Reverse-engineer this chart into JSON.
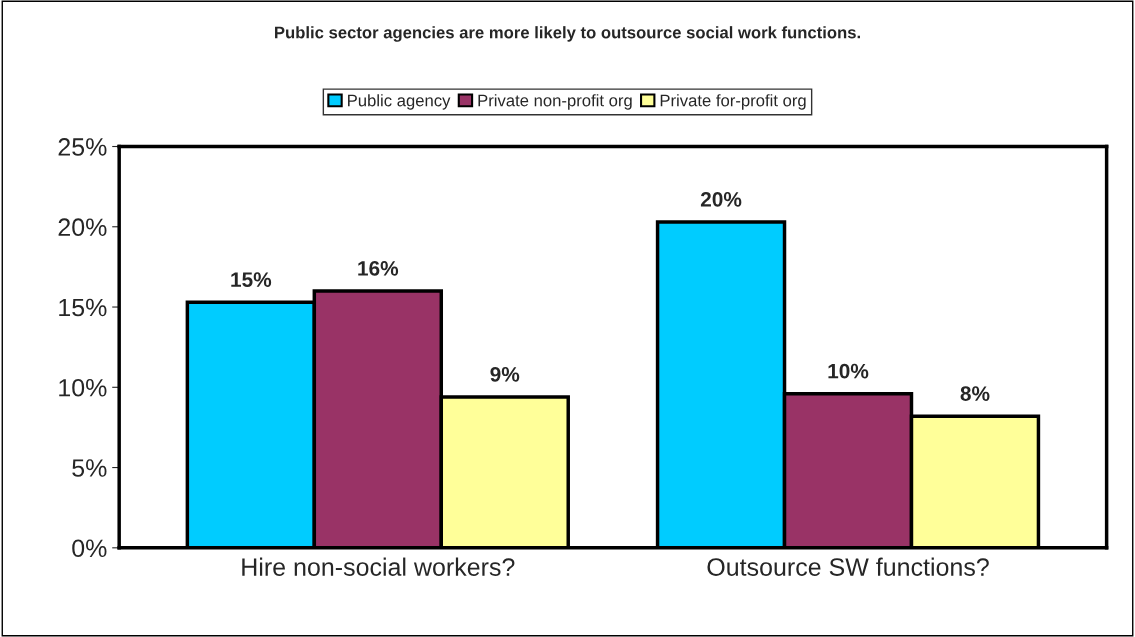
{
  "chart_data": {
    "type": "bar",
    "title": "Public sector agencies are more likely to outsource social work functions.",
    "categories": [
      "Hire non-social workers?",
      "Outsource SW functions?"
    ],
    "series": [
      {
        "name": "Public agency",
        "color": "#00ccff",
        "values": [
          15.3,
          20.3
        ],
        "value_labels": [
          "15%",
          "20%"
        ]
      },
      {
        "name": "Private non-profit org",
        "color": "#993366",
        "values": [
          16.0,
          9.6
        ],
        "value_labels": [
          "16%",
          "10%"
        ]
      },
      {
        "name": "Private for-profit org",
        "color": "#ffff99",
        "values": [
          9.4,
          8.2
        ],
        "value_labels": [
          "9%",
          "8%"
        ]
      }
    ],
    "ylim": [
      0,
      25
    ],
    "yticks": [
      {
        "value": 0,
        "label": "0%"
      },
      {
        "value": 5,
        "label": "5%"
      },
      {
        "value": 10,
        "label": "10%"
      },
      {
        "value": 15,
        "label": "15%"
      },
      {
        "value": 20,
        "label": "20%"
      },
      {
        "value": 25,
        "label": "25%"
      }
    ],
    "grid": false,
    "legend": "top"
  }
}
